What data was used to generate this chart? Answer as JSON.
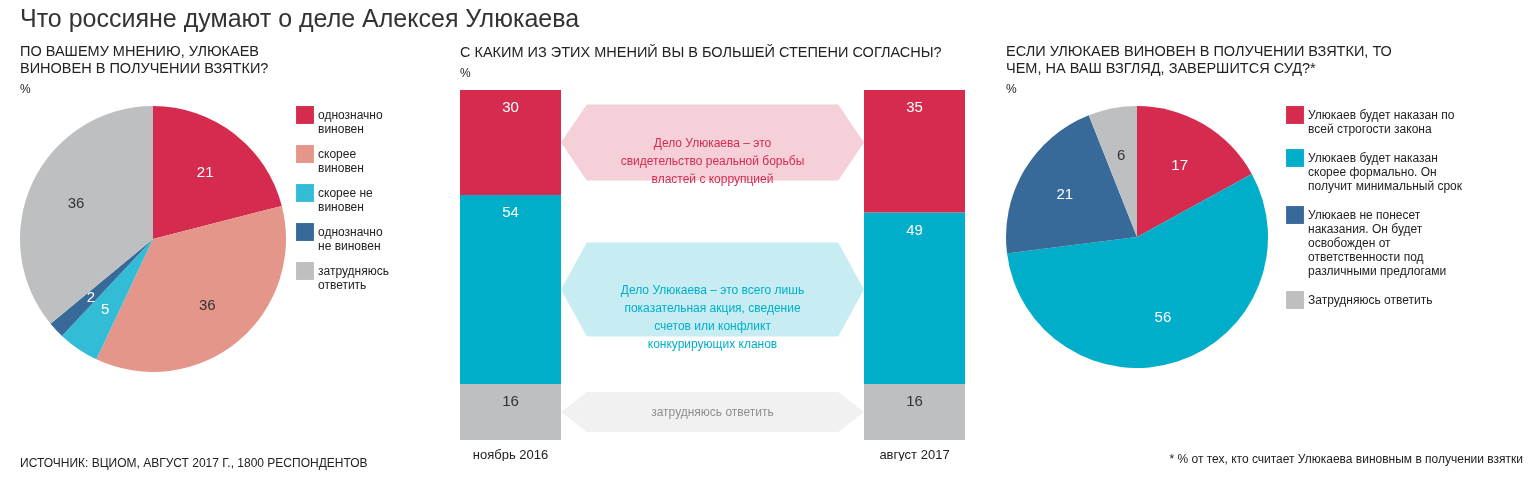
{
  "chart_data": [
    {
      "type": "pie",
      "title": "ПО ВАШЕМУ МНЕНИЮ, УЛЮКАЕВ ВИНОВЕН В ПОЛУЧЕНИИ ВЗЯТКИ?",
      "subtitle": "%",
      "categories": [
        "однозначно виновен",
        "скорее виновен",
        "скорее не виновен",
        "однозначно не виновен",
        "затрудняюсь ответить"
      ],
      "values": [
        21,
        36,
        5,
        2,
        36
      ],
      "colors": [
        "#d42b4e",
        "#e5968a",
        "#33bcd6",
        "#376a99",
        "#bebfc1"
      ],
      "data_labels": true,
      "legend": "right",
      "annotations": [
        "Что россияне думают о деле Алексея Улюкаева",
        "ИСТОЧНИК: ВЦИОМ, АВГУСТ 2017 Г., 1800 РЕСПОНДЕНТОВ"
      ]
    },
    {
      "type": "bar",
      "stacked": true,
      "title": "С КАКИМ ИЗ ЭТИХ МНЕНИЙ ВЫ В БОЛЬШЕЙ СТЕПЕНИ СОГЛАСНЫ?",
      "subtitle": "%",
      "categories": [
        "ноябрь 2016",
        "август 2017"
      ],
      "data_labels": true,
      "series": [
        {
          "name": "затрудняюсь ответить",
          "color": "#bebfc1",
          "values": [
            16,
            16
          ]
        },
        {
          "name": "Дело Улюкаева – это всего лишь показательная акция, сведение счетов или конфликт конкурирующих кланов",
          "color": "#00aec9",
          "values": [
            54,
            49
          ]
        },
        {
          "name": "Дело Улюкаева – это свидетельство реальной борьбы властей с коррупцией",
          "color": "#d42b4e",
          "values": [
            30,
            35
          ]
        }
      ]
    },
    {
      "type": "pie",
      "title": "ЕСЛИ УЛЮКАЕВ ВИНОВЕН В ПОЛУЧЕНИИ ВЗЯТКИ, ТО ЧЕМ, НА ВАШ ВЗГЛЯД, ЗАВЕРШИТСЯ СУД?*",
      "subtitle": "%",
      "categories": [
        "Улюкаев будет наказан по всей строгости закона",
        "Улюкаев будет наказан скорее формально. Он получит минимальный срок",
        "Улюкаев не понесет наказания. Он будет освобожден от ответственности под различными предлогами",
        "Затрудняюсь ответить"
      ],
      "values": [
        17,
        56,
        21,
        6
      ],
      "colors": [
        "#d42b4e",
        "#00aec9",
        "#376a99",
        "#bebfc1"
      ],
      "data_labels": true,
      "legend": "right",
      "annotations": [
        "* % от тех, кто считает Улюкаева виновным в получении взятки"
      ]
    }
  ]
}
